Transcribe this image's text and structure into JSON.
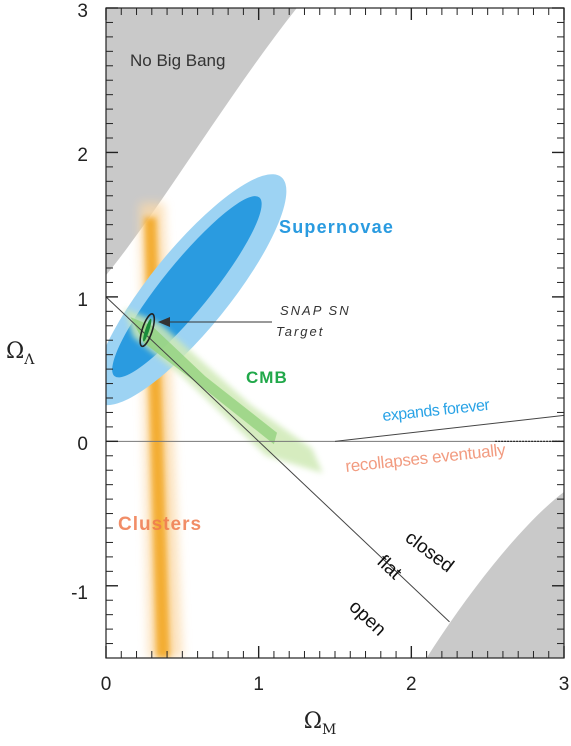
{
  "chart_data": {
    "type": "scatter",
    "title": "",
    "xlabel": {
      "symbol": "Ω",
      "subscript": "M"
    },
    "ylabel": {
      "symbol": "Ω",
      "subscript": "Λ"
    },
    "xlim": [
      0,
      3
    ],
    "ylim": [
      -1.5,
      3
    ],
    "x_ticks": [
      "0",
      "1",
      "2",
      "3"
    ],
    "y_ticks": [
      "-1",
      "0",
      "1",
      "2",
      "3"
    ],
    "grid": false,
    "regions": [
      {
        "name": "No Big Bang",
        "color": "#c9c9c9"
      },
      {
        "name": "No Big Bang (lower-right)",
        "color": "#c9c9c9"
      }
    ],
    "lines": [
      {
        "name": "flat",
        "points": [
          [
            0.0,
            1.0
          ],
          [
            2.25,
            -1.25
          ]
        ]
      },
      {
        "name": "Ω_Λ = 0",
        "points": [
          [
            0.0,
            0.0
          ],
          [
            3.0,
            0.0
          ]
        ]
      },
      {
        "name": "expands forever / recollapses eventually",
        "points": [
          [
            1.5,
            0.0
          ],
          [
            3.0,
            0.18
          ]
        ]
      }
    ],
    "contours": [
      {
        "name": "Supernovae",
        "color": "#2a9be0",
        "center": [
          0.55,
          1.05
        ],
        "label_color": "#2a9be0"
      },
      {
        "name": "CMB",
        "color": "#8fd07a",
        "center": [
          0.6,
          0.35
        ],
        "label_color": "#21a84a"
      },
      {
        "name": "Clusters",
        "color": "#f2a51c",
        "center": [
          0.3,
          0.5
        ],
        "label_color": "#ef7a4d"
      },
      {
        "name": "SNAP SN Target",
        "color": "#333333",
        "center": [
          0.27,
          0.77
        ]
      }
    ],
    "annotations": {
      "no_big_bang": "No Big Bang",
      "supernovae": "Supernovae",
      "cmb": "CMB",
      "clusters": "Clusters",
      "snap_line1": "SNAP SN",
      "snap_line2": "Target",
      "expands": "expands forever",
      "recollapses": "recollapses eventually",
      "closed": "closed",
      "flat": "flat",
      "open": "open"
    },
    "colors": {
      "grey_region": "#c9c9c9",
      "supernovae_outer": "#9dd3f3",
      "supernovae_inner": "#2a9be0",
      "cmb_outer": "#cfe9b5",
      "cmb_inner": "#8fd07a",
      "cluster_outer": "#fbd9a8",
      "cluster_inner": "#f2a51c",
      "recollapse_text": "#f08a6a",
      "expand_text": "#2aa3e6"
    }
  }
}
